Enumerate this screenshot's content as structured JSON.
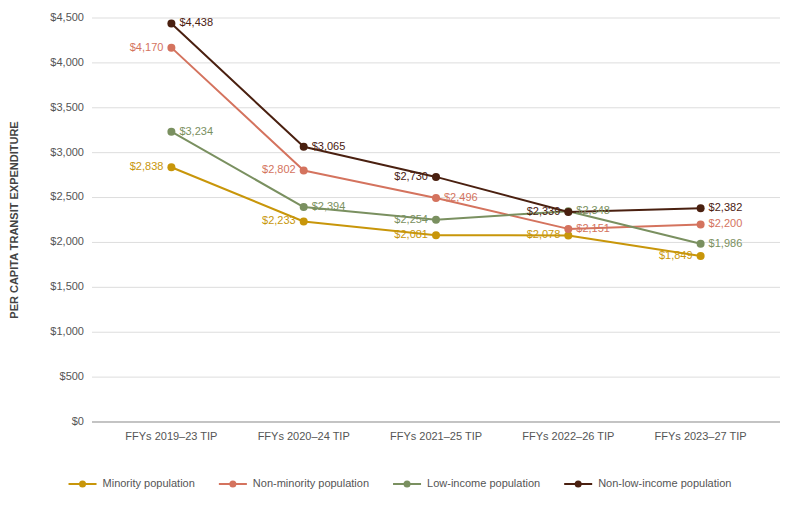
{
  "chart_data": {
    "type": "line",
    "y_label": "PER CAPITA TRANSIT EXPENDITURE",
    "categories": [
      "FFYs 2019–23 TIP",
      "FFYs 2020–24 TIP",
      "FFYs 2021–25 TIP",
      "FFYs 2022–26 TIP",
      "FFYs 2023–27 TIP"
    ],
    "series": [
      {
        "name": "Minority population",
        "color": "#c8960a",
        "marker": "circle",
        "values": [
          2838,
          2233,
          2081,
          2078,
          1849
        ],
        "value_labels": [
          "$2,838",
          "$2,233",
          "$2,081",
          "$2,078",
          "$1,849"
        ]
      },
      {
        "name": "Non-minority population",
        "color": "#d4735e",
        "marker": "circle",
        "values": [
          4170,
          2802,
          2496,
          2151,
          2200
        ],
        "value_labels": [
          "$4,170",
          "$2,802",
          "$2,496",
          "$2,151",
          "$2,200"
        ]
      },
      {
        "name": "Low-income population",
        "color": "#7a9060",
        "marker": "circle",
        "values": [
          3234,
          2394,
          2254,
          2348,
          1986
        ],
        "value_labels": [
          "$3,234",
          "$2,394",
          "$2,254",
          "$2,348",
          "$1,986"
        ]
      },
      {
        "name": "Non-low-income population",
        "color": "#4a2010",
        "marker": "circle",
        "values": [
          4438,
          3065,
          2730,
          2339,
          2382
        ],
        "value_labels": [
          "$4,438",
          "$3,065",
          "$2,730",
          "$2,339",
          "$2,382"
        ]
      }
    ],
    "ylim": [
      0,
      4500
    ],
    "yticks": [
      {
        "value": 0,
        "label": "$0"
      },
      {
        "value": 500,
        "label": "$500"
      },
      {
        "value": 1000,
        "label": "$1,000"
      },
      {
        "value": 1500,
        "label": "$1,500"
      },
      {
        "value": 2000,
        "label": "$2,000"
      },
      {
        "value": 2500,
        "label": "$2,500"
      },
      {
        "value": 3000,
        "label": "$3,000"
      },
      {
        "value": 3500,
        "label": "$3,500"
      },
      {
        "value": 4000,
        "label": "$4,000"
      },
      {
        "value": 4500,
        "label": "$4,500"
      }
    ],
    "grid": true,
    "data_labels": true,
    "legend": "bottom"
  }
}
